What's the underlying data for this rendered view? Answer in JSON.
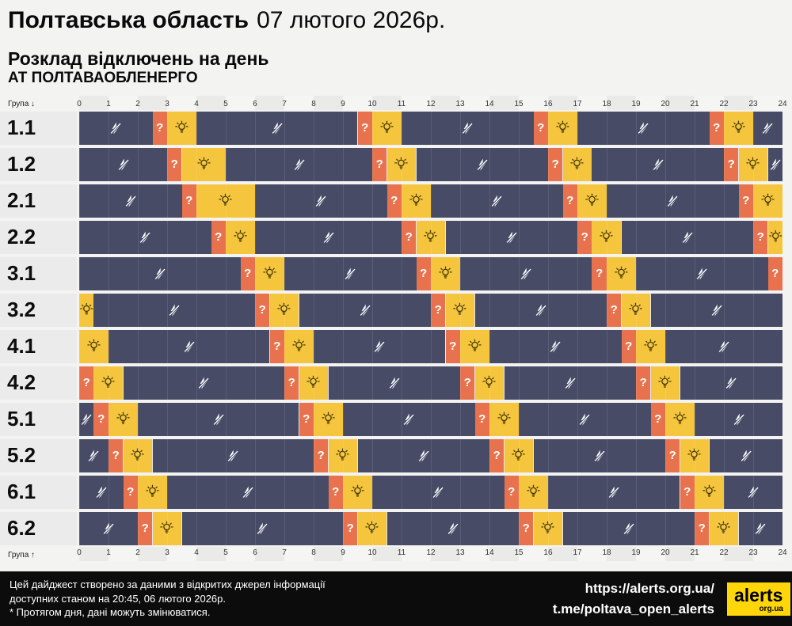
{
  "header": {
    "region": "Полтавська область",
    "date": "07 лютого 2026р.",
    "subtitle": "Розклад відключень на день",
    "company": "АТ ПОЛТАВАОБЛЕНЕРГО"
  },
  "axis": {
    "group_label_top": "Група ↓",
    "group_label_bottom": "Група ↑"
  },
  "colors": {
    "off": "#474B66",
    "maybe": "#E8724D",
    "on": "#F6C53E",
    "page_bg": "#F3F3F2",
    "label_bg": "#EBEBEB",
    "footer_bg": "#0C0C0C",
    "logo_bg": "#FFD60A"
  },
  "chart_data": {
    "type": "heatmap",
    "title": "Розклад відключень на день",
    "xlabel": "",
    "ylabel": "Група",
    "x_ticks": [
      0,
      1,
      2,
      3,
      4,
      5,
      6,
      7,
      8,
      9,
      10,
      11,
      12,
      13,
      14,
      15,
      16,
      17,
      18,
      19,
      20,
      21,
      22,
      23,
      24
    ],
    "x_range": [
      0,
      24
    ],
    "states": {
      "off": {
        "color": "#474B66",
        "icon": "crossed-lightning-icon"
      },
      "maybe": {
        "color": "#E8724D",
        "icon": "question-mark-icon"
      },
      "on": {
        "color": "#F6C53E",
        "icon": "light-bulb-icon"
      }
    },
    "groups": [
      {
        "name": "1.1",
        "segments": [
          {
            "from": 0,
            "to": 2.5,
            "state": "off"
          },
          {
            "from": 2.5,
            "to": 3,
            "state": "maybe"
          },
          {
            "from": 3,
            "to": 4,
            "state": "on"
          },
          {
            "from": 4,
            "to": 9.5,
            "state": "off"
          },
          {
            "from": 9.5,
            "to": 10,
            "state": "maybe"
          },
          {
            "from": 10,
            "to": 11,
            "state": "on"
          },
          {
            "from": 11,
            "to": 15.5,
            "state": "off"
          },
          {
            "from": 15.5,
            "to": 16,
            "state": "maybe"
          },
          {
            "from": 16,
            "to": 17,
            "state": "on"
          },
          {
            "from": 17,
            "to": 21.5,
            "state": "off"
          },
          {
            "from": 21.5,
            "to": 22,
            "state": "maybe"
          },
          {
            "from": 22,
            "to": 23,
            "state": "on"
          },
          {
            "from": 23,
            "to": 24,
            "state": "off"
          }
        ]
      },
      {
        "name": "1.2",
        "segments": [
          {
            "from": 0,
            "to": 3,
            "state": "off"
          },
          {
            "from": 3,
            "to": 3.5,
            "state": "maybe"
          },
          {
            "from": 3.5,
            "to": 5,
            "state": "on"
          },
          {
            "from": 5,
            "to": 10,
            "state": "off"
          },
          {
            "from": 10,
            "to": 10.5,
            "state": "maybe"
          },
          {
            "from": 10.5,
            "to": 11.5,
            "state": "on"
          },
          {
            "from": 11.5,
            "to": 16,
            "state": "off"
          },
          {
            "from": 16,
            "to": 16.5,
            "state": "maybe"
          },
          {
            "from": 16.5,
            "to": 17.5,
            "state": "on"
          },
          {
            "from": 17.5,
            "to": 22,
            "state": "off"
          },
          {
            "from": 22,
            "to": 22.5,
            "state": "maybe"
          },
          {
            "from": 22.5,
            "to": 23.5,
            "state": "on"
          },
          {
            "from": 23.5,
            "to": 24,
            "state": "off"
          }
        ]
      },
      {
        "name": "2.1",
        "segments": [
          {
            "from": 0,
            "to": 3.5,
            "state": "off"
          },
          {
            "from": 3.5,
            "to": 4,
            "state": "maybe"
          },
          {
            "from": 4,
            "to": 6,
            "state": "on"
          },
          {
            "from": 6,
            "to": 10.5,
            "state": "off"
          },
          {
            "from": 10.5,
            "to": 11,
            "state": "maybe"
          },
          {
            "from": 11,
            "to": 12,
            "state": "on"
          },
          {
            "from": 12,
            "to": 16.5,
            "state": "off"
          },
          {
            "from": 16.5,
            "to": 17,
            "state": "maybe"
          },
          {
            "from": 17,
            "to": 18,
            "state": "on"
          },
          {
            "from": 18,
            "to": 22.5,
            "state": "off"
          },
          {
            "from": 22.5,
            "to": 23,
            "state": "maybe"
          },
          {
            "from": 23,
            "to": 24,
            "state": "on"
          }
        ]
      },
      {
        "name": "2.2",
        "segments": [
          {
            "from": 0,
            "to": 4.5,
            "state": "off"
          },
          {
            "from": 4.5,
            "to": 5,
            "state": "maybe"
          },
          {
            "from": 5,
            "to": 6,
            "state": "on"
          },
          {
            "from": 6,
            "to": 11,
            "state": "off"
          },
          {
            "from": 11,
            "to": 11.5,
            "state": "maybe"
          },
          {
            "from": 11.5,
            "to": 12.5,
            "state": "on"
          },
          {
            "from": 12.5,
            "to": 17,
            "state": "off"
          },
          {
            "from": 17,
            "to": 17.5,
            "state": "maybe"
          },
          {
            "from": 17.5,
            "to": 18.5,
            "state": "on"
          },
          {
            "from": 18.5,
            "to": 23,
            "state": "off"
          },
          {
            "from": 23,
            "to": 23.5,
            "state": "maybe"
          },
          {
            "from": 23.5,
            "to": 24,
            "state": "on"
          }
        ]
      },
      {
        "name": "3.1",
        "segments": [
          {
            "from": 0,
            "to": 5.5,
            "state": "off"
          },
          {
            "from": 5.5,
            "to": 6,
            "state": "maybe"
          },
          {
            "from": 6,
            "to": 7,
            "state": "on"
          },
          {
            "from": 7,
            "to": 11.5,
            "state": "off"
          },
          {
            "from": 11.5,
            "to": 12,
            "state": "maybe"
          },
          {
            "from": 12,
            "to": 13,
            "state": "on"
          },
          {
            "from": 13,
            "to": 17.5,
            "state": "off"
          },
          {
            "from": 17.5,
            "to": 18,
            "state": "maybe"
          },
          {
            "from": 18,
            "to": 19,
            "state": "on"
          },
          {
            "from": 19,
            "to": 23.5,
            "state": "off"
          },
          {
            "from": 23.5,
            "to": 24,
            "state": "maybe"
          }
        ]
      },
      {
        "name": "3.2",
        "segments": [
          {
            "from": 0,
            "to": 0.5,
            "state": "on"
          },
          {
            "from": 0.5,
            "to": 6,
            "state": "off"
          },
          {
            "from": 6,
            "to": 6.5,
            "state": "maybe"
          },
          {
            "from": 6.5,
            "to": 7.5,
            "state": "on"
          },
          {
            "from": 7.5,
            "to": 12,
            "state": "off"
          },
          {
            "from": 12,
            "to": 12.5,
            "state": "maybe"
          },
          {
            "from": 12.5,
            "to": 13.5,
            "state": "on"
          },
          {
            "from": 13.5,
            "to": 18,
            "state": "off"
          },
          {
            "from": 18,
            "to": 18.5,
            "state": "maybe"
          },
          {
            "from": 18.5,
            "to": 19.5,
            "state": "on"
          },
          {
            "from": 19.5,
            "to": 24,
            "state": "off"
          }
        ]
      },
      {
        "name": "4.1",
        "segments": [
          {
            "from": 0,
            "to": 1,
            "state": "on"
          },
          {
            "from": 1,
            "to": 6.5,
            "state": "off"
          },
          {
            "from": 6.5,
            "to": 7,
            "state": "maybe"
          },
          {
            "from": 7,
            "to": 8,
            "state": "on"
          },
          {
            "from": 8,
            "to": 12.5,
            "state": "off"
          },
          {
            "from": 12.5,
            "to": 13,
            "state": "maybe"
          },
          {
            "from": 13,
            "to": 14,
            "state": "on"
          },
          {
            "from": 14,
            "to": 18.5,
            "state": "off"
          },
          {
            "from": 18.5,
            "to": 19,
            "state": "maybe"
          },
          {
            "from": 19,
            "to": 20,
            "state": "on"
          },
          {
            "from": 20,
            "to": 24,
            "state": "off"
          }
        ]
      },
      {
        "name": "4.2",
        "segments": [
          {
            "from": 0,
            "to": 0.5,
            "state": "maybe"
          },
          {
            "from": 0.5,
            "to": 1.5,
            "state": "on"
          },
          {
            "from": 1.5,
            "to": 7,
            "state": "off"
          },
          {
            "from": 7,
            "to": 7.5,
            "state": "maybe"
          },
          {
            "from": 7.5,
            "to": 8.5,
            "state": "on"
          },
          {
            "from": 8.5,
            "to": 13,
            "state": "off"
          },
          {
            "from": 13,
            "to": 13.5,
            "state": "maybe"
          },
          {
            "from": 13.5,
            "to": 14.5,
            "state": "on"
          },
          {
            "from": 14.5,
            "to": 19,
            "state": "off"
          },
          {
            "from": 19,
            "to": 19.5,
            "state": "maybe"
          },
          {
            "from": 19.5,
            "to": 20.5,
            "state": "on"
          },
          {
            "from": 20.5,
            "to": 24,
            "state": "off"
          }
        ]
      },
      {
        "name": "5.1",
        "segments": [
          {
            "from": 0,
            "to": 0.5,
            "state": "off"
          },
          {
            "from": 0.5,
            "to": 1,
            "state": "maybe"
          },
          {
            "from": 1,
            "to": 2,
            "state": "on"
          },
          {
            "from": 2,
            "to": 7.5,
            "state": "off"
          },
          {
            "from": 7.5,
            "to": 8,
            "state": "maybe"
          },
          {
            "from": 8,
            "to": 9,
            "state": "on"
          },
          {
            "from": 9,
            "to": 13.5,
            "state": "off"
          },
          {
            "from": 13.5,
            "to": 14,
            "state": "maybe"
          },
          {
            "from": 14,
            "to": 15,
            "state": "on"
          },
          {
            "from": 15,
            "to": 19.5,
            "state": "off"
          },
          {
            "from": 19.5,
            "to": 20,
            "state": "maybe"
          },
          {
            "from": 20,
            "to": 21,
            "state": "on"
          },
          {
            "from": 21,
            "to": 24,
            "state": "off"
          }
        ]
      },
      {
        "name": "5.2",
        "segments": [
          {
            "from": 0,
            "to": 1,
            "state": "off"
          },
          {
            "from": 1,
            "to": 1.5,
            "state": "maybe"
          },
          {
            "from": 1.5,
            "to": 2.5,
            "state": "on"
          },
          {
            "from": 2.5,
            "to": 8,
            "state": "off"
          },
          {
            "from": 8,
            "to": 8.5,
            "state": "maybe"
          },
          {
            "from": 8.5,
            "to": 9.5,
            "state": "on"
          },
          {
            "from": 9.5,
            "to": 14,
            "state": "off"
          },
          {
            "from": 14,
            "to": 14.5,
            "state": "maybe"
          },
          {
            "from": 14.5,
            "to": 15.5,
            "state": "on"
          },
          {
            "from": 15.5,
            "to": 20,
            "state": "off"
          },
          {
            "from": 20,
            "to": 20.5,
            "state": "maybe"
          },
          {
            "from": 20.5,
            "to": 21.5,
            "state": "on"
          },
          {
            "from": 21.5,
            "to": 24,
            "state": "off"
          }
        ]
      },
      {
        "name": "6.1",
        "segments": [
          {
            "from": 0,
            "to": 1.5,
            "state": "off"
          },
          {
            "from": 1.5,
            "to": 2,
            "state": "maybe"
          },
          {
            "from": 2,
            "to": 3,
            "state": "on"
          },
          {
            "from": 3,
            "to": 8.5,
            "state": "off"
          },
          {
            "from": 8.5,
            "to": 9,
            "state": "maybe"
          },
          {
            "from": 9,
            "to": 10,
            "state": "on"
          },
          {
            "from": 10,
            "to": 14.5,
            "state": "off"
          },
          {
            "from": 14.5,
            "to": 15,
            "state": "maybe"
          },
          {
            "from": 15,
            "to": 16,
            "state": "on"
          },
          {
            "from": 16,
            "to": 20.5,
            "state": "off"
          },
          {
            "from": 20.5,
            "to": 21,
            "state": "maybe"
          },
          {
            "from": 21,
            "to": 22,
            "state": "on"
          },
          {
            "from": 22,
            "to": 24,
            "state": "off"
          }
        ]
      },
      {
        "name": "6.2",
        "segments": [
          {
            "from": 0,
            "to": 2,
            "state": "off"
          },
          {
            "from": 2,
            "to": 2.5,
            "state": "maybe"
          },
          {
            "from": 2.5,
            "to": 3.5,
            "state": "on"
          },
          {
            "from": 3.5,
            "to": 9,
            "state": "off"
          },
          {
            "from": 9,
            "to": 9.5,
            "state": "maybe"
          },
          {
            "from": 9.5,
            "to": 10.5,
            "state": "on"
          },
          {
            "from": 10.5,
            "to": 15,
            "state": "off"
          },
          {
            "from": 15,
            "to": 15.5,
            "state": "maybe"
          },
          {
            "from": 15.5,
            "to": 16.5,
            "state": "on"
          },
          {
            "from": 16.5,
            "to": 21,
            "state": "off"
          },
          {
            "from": 21,
            "to": 21.5,
            "state": "maybe"
          },
          {
            "from": 21.5,
            "to": 22.5,
            "state": "on"
          },
          {
            "from": 22.5,
            "to": 24,
            "state": "off"
          }
        ]
      }
    ]
  },
  "footer": {
    "note_line1": "Цей дайджест створено за даними з відкритих джерел інформації",
    "note_line2": "доступних станом на 20:45, 06 лютого 2026р.",
    "note_line3": "* Протягом дня, дані можуть змінюватися.",
    "link_site": "https://alerts.org.ua/",
    "link_telegram": "t.me/poltava_open_alerts",
    "logo_text": "alerts",
    "logo_sub": "org.ua"
  }
}
